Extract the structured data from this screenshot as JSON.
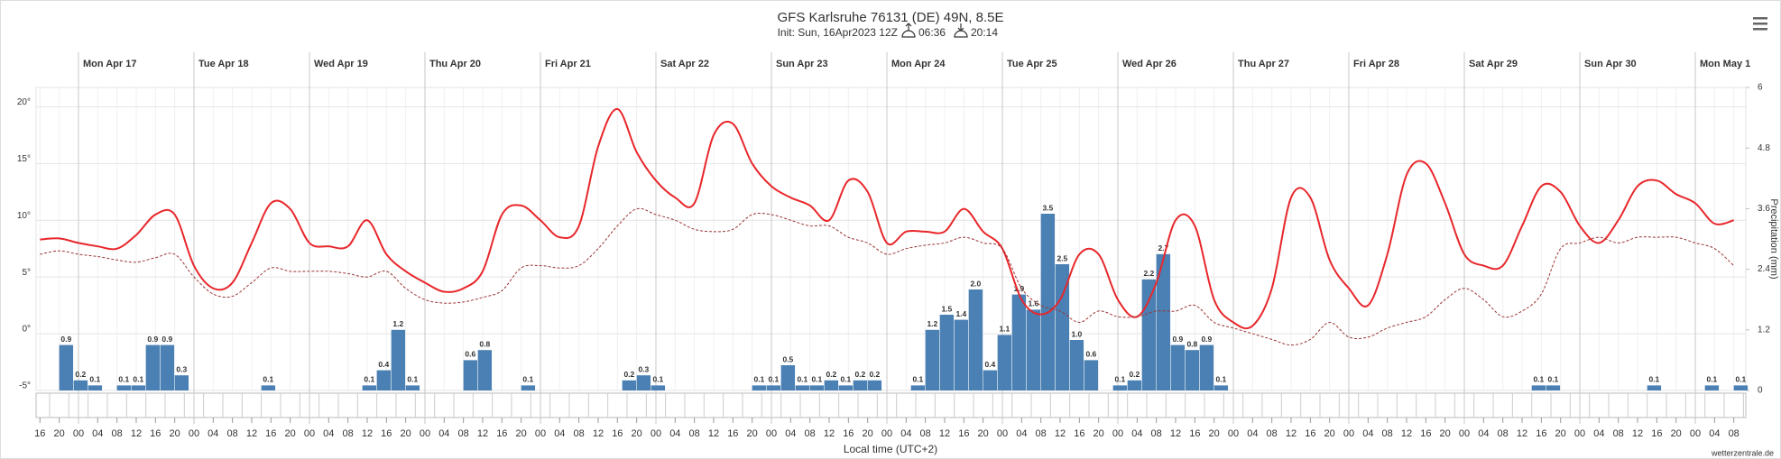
{
  "chart_data": {
    "type": "line",
    "title": "GFS Karlsruhe 76131 (DE) 49N, 8.5E",
    "subtitle": "Init: Sun, 16Apr2023 12Z",
    "sunrise": "06:36",
    "sunset": "20:14",
    "x_label": "Local time (UTC+2)",
    "y2_label": "Precipitation (mm)",
    "credit": "wetterzentrale.de",
    "day_labels": [
      "Mon Apr 17",
      "Tue Apr 18",
      "Wed Apr 19",
      "Thu Apr 20",
      "Fri Apr 21",
      "Sat Apr 22",
      "Sun Apr 23",
      "Mon Apr 24",
      "Tue Apr 25",
      "Wed Apr 26",
      "Thu Apr 27",
      "Fri Apr 28",
      "Sat Apr 29",
      "Sun Apr 30",
      "Mon May 1"
    ],
    "categories": [
      "16",
      "20",
      "00",
      "04",
      "08",
      "12",
      "16",
      "20",
      "00",
      "04",
      "08",
      "12",
      "16",
      "20",
      "00",
      "04",
      "08",
      "12",
      "16",
      "20",
      "00",
      "04",
      "08",
      "12",
      "16",
      "20",
      "00",
      "04",
      "08",
      "12",
      "16",
      "20",
      "00",
      "04",
      "08",
      "12",
      "16",
      "20",
      "00",
      "04",
      "08",
      "12",
      "16",
      "20",
      "00",
      "04",
      "08",
      "12",
      "16",
      "20",
      "00",
      "04",
      "08",
      "12",
      "16",
      "20",
      "00",
      "04",
      "08",
      "12",
      "16",
      "20",
      "00",
      "04",
      "08",
      "12",
      "16",
      "20",
      "00",
      "04",
      "08",
      "12",
      "16",
      "20",
      "00",
      "04",
      "08",
      "12",
      "16",
      "20",
      "00",
      "04",
      "08",
      "12",
      "16",
      "20",
      "00",
      "04",
      "08"
    ],
    "ylim": [
      -5,
      21.7
    ],
    "yticks": [
      {
        "value": -5,
        "label": "-5°"
      },
      {
        "value": 0,
        "label": "0°"
      },
      {
        "value": 5,
        "label": "5°"
      },
      {
        "value": 10,
        "label": "10°"
      },
      {
        "value": 15,
        "label": "15°"
      },
      {
        "value": 20,
        "label": "20°"
      }
    ],
    "y2lim": [
      0,
      6
    ],
    "y2ticks": [
      0,
      1.2,
      2.4,
      3.6,
      4.8,
      6
    ],
    "grid": true,
    "series": [
      {
        "type": "line",
        "color": "#e8272b",
        "style": "solid",
        "values": [
          8.3,
          8.4,
          8.0,
          7.7,
          7.5,
          8.7,
          10.5,
          10.5,
          6.0,
          4.0,
          4.5,
          8.0,
          11.5,
          11.0,
          8.0,
          7.7,
          7.7,
          10.0,
          7.0,
          5.5,
          4.5,
          3.7,
          4.0,
          5.5,
          10.5,
          11.3,
          10.0,
          8.5,
          9.5,
          16.5,
          19.8,
          16.0,
          13.5,
          12.0,
          11.5,
          17.5,
          18.5,
          15.0,
          13.0,
          12.0,
          11.3,
          10.0,
          13.5,
          12.5,
          8.0,
          9.0,
          9.0,
          9.0,
          11.0,
          9.0,
          7.5,
          3.0,
          1.7,
          3.0,
          7.0,
          7.0,
          3.0,
          1.5,
          4.5,
          10.0,
          9.5,
          3.0,
          1.0,
          0.7,
          4.0,
          12.0,
          12.0,
          6.5,
          4.0,
          2.5,
          7.0,
          14.0,
          15.0,
          11.5,
          7.0,
          6.0,
          6.0,
          9.5,
          13.0,
          12.5,
          9.5,
          8.0,
          10.0,
          13.0,
          13.5,
          12.3,
          11.5,
          9.7,
          10.0
        ]
      },
      {
        "type": "line",
        "color": "#9b3434",
        "style": "dashed",
        "values": [
          7.0,
          7.3,
          7.0,
          6.8,
          6.5,
          6.3,
          6.7,
          7.0,
          5.0,
          3.5,
          3.3,
          4.5,
          5.8,
          5.5,
          5.5,
          5.5,
          5.3,
          5.0,
          5.5,
          4.0,
          3.0,
          2.7,
          2.8,
          3.2,
          3.8,
          5.8,
          6.0,
          5.8,
          6.0,
          7.5,
          9.5,
          11.0,
          10.5,
          10.0,
          9.2,
          9.0,
          9.2,
          10.5,
          10.5,
          10.0,
          9.5,
          9.5,
          8.5,
          8.0,
          7.0,
          7.5,
          7.8,
          8.0,
          8.5,
          8.0,
          7.5,
          4.0,
          2.5,
          2.0,
          1.0,
          2.0,
          1.5,
          1.5,
          2.0,
          2.0,
          2.5,
          1.0,
          0.5,
          0.0,
          -0.5,
          -1.0,
          -0.5,
          1.0,
          -0.3,
          -0.3,
          0.5,
          1.0,
          1.5,
          3.0,
          4.0,
          3.0,
          1.5,
          2.0,
          3.5,
          7.5,
          8.0,
          8.5,
          8.0,
          8.5,
          8.5,
          8.5,
          8.0,
          7.5,
          6.0
        ]
      },
      {
        "type": "bar",
        "axis": "y2",
        "color": "#4a80b4",
        "x": [
          "Apr 16 20",
          "Apr 16 23",
          "Apr 17 02",
          "Apr 17 08",
          "Apr 17 11",
          "Apr 17 14",
          "Apr 17 17",
          "Apr 17 20",
          "Apr 18 14",
          "Apr 19 11",
          "Apr 19 14",
          "Apr 19 17",
          "Apr 19 20",
          "Apr 20 08",
          "Apr 20 11",
          "Apr 20 20",
          "Apr 21 17",
          "Apr 21 20",
          "Apr 21 23",
          "Apr 22 20",
          "Apr 22 23",
          "Apr 23 02",
          "Apr 23 05",
          "Apr 23 08",
          "Apr 23 11",
          "Apr 23 14",
          "Apr 23 17",
          "Apr 23 20",
          "Apr 24 05",
          "Apr 24 08",
          "Apr 24 11",
          "Apr 24 14",
          "Apr 24 17",
          "Apr 24 20",
          "Apr 24 23",
          "Apr 25 02",
          "Apr 25 05",
          "Apr 25 08",
          "Apr 25 11",
          "Apr 25 14",
          "Apr 25 17",
          "Apr 25 23",
          "Apr 26 02",
          "Apr 26 05",
          "Apr 26 08",
          "Apr 26 11",
          "Apr 26 14",
          "Apr 26 17",
          "Apr 26 20",
          "Apr 29 14",
          "Apr 29 17",
          "Apr 30 14",
          "May 1 02",
          "May 1 08"
        ],
        "values": [
          0.9,
          0.2,
          0.1,
          0.1,
          0.1,
          0.9,
          0.9,
          0.3,
          0.1,
          0.1,
          0.4,
          1.2,
          0.1,
          0.6,
          0.8,
          0.1,
          0.2,
          0.3,
          0.1,
          0.1,
          0.1,
          0.5,
          0.1,
          0.1,
          0.2,
          0.1,
          0.2,
          0.2,
          0.1,
          1.2,
          1.5,
          1.4,
          2.0,
          0.4,
          1.1,
          1.9,
          1.6,
          3.5,
          2.5,
          1.0,
          0.6,
          0.1,
          0.2,
          2.2,
          2.7,
          0.9,
          0.8,
          0.9,
          0.1,
          0.1,
          0.1,
          0.1,
          0.1,
          0.1
        ],
        "value_labels": [
          "0.9",
          "0.2",
          "0.1",
          "0.1",
          "0.1",
          "0.9",
          "0.9",
          "0.3",
          "0.1",
          "0.1",
          "0.4",
          "1.2",
          "0.1",
          "0.6",
          "0.8",
          "0.1",
          "0.2",
          "0.3",
          "0.1",
          "0.1",
          "0.1",
          "0.5",
          "0.1",
          "0.1",
          "0.2",
          "0.1",
          "0.2",
          "0.2",
          "0.1",
          "1.2",
          "1.5",
          "1.4",
          "2.0",
          "0.4",
          "1.1",
          "1.9",
          "1.6",
          "3.5",
          "2.5",
          "1.0",
          "0.6",
          "0.1",
          "0.2",
          "2.2",
          "2.7",
          "0.9",
          "0.8",
          "0.9",
          "0.1",
          "0.1",
          "0.1",
          "0.1",
          "0.1",
          "0.1"
        ]
      }
    ]
  }
}
